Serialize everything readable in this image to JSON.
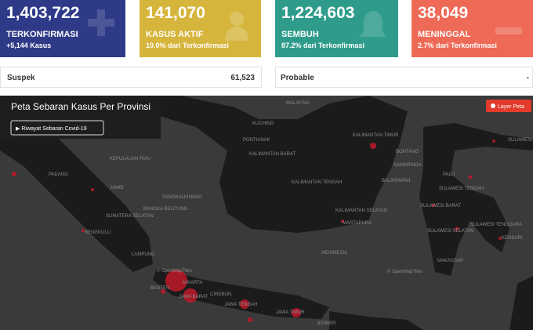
{
  "cards": [
    {
      "value": "1,403,722",
      "label": "TERKONFIRMASI",
      "sub": "+5,144 Kasus"
    },
    {
      "value": "141,070",
      "label": "KASUS AKTIF",
      "sub": "10.0% dari Terkonfirmasi"
    },
    {
      "value": "1,224,603",
      "label": "SEMBUH",
      "sub": "87.2% dari Terkonfirmasi"
    },
    {
      "value": "38,049",
      "label": "MENINGGAL",
      "sub": "2.7% dari Terkonfirmasi"
    }
  ],
  "suspek": {
    "label": "Suspek",
    "value": "61,523"
  },
  "probable": {
    "label": "Probable",
    "value": "-"
  },
  "map": {
    "title": "Peta Sebaran Kasus Per Provinsi",
    "history_button": "▶ Riwayat Sebaran Covid-19",
    "layer_button": "Layer Peta",
    "attribution": "© OpenMapTiles",
    "labels": [
      "MALAYSIA",
      "KUCHING",
      "PONTIANAK",
      "KALIMANTAN BARAT",
      "KALIMANTAN TENGAH",
      "KALIMANTAN TIMUR",
      "BONTANG",
      "SAMARINDA",
      "BALIKPAPAN",
      "KALIMANTAN SELATAN",
      "MARTAPURA",
      "INDONESIA",
      "PALU",
      "SULAWESI TENGAH",
      "SULAWESI BARAT",
      "SULAWESI SELATAN",
      "SULAWESI TENGGARA",
      "KENDARI",
      "MAKASSAR",
      "SULAWESI",
      "PADANG",
      "KEPULAUAN RIAU",
      "JAMBI",
      "PANGKALPINANG",
      "BANGKA BELITUNG",
      "SUMATERA SELATAN",
      "BENGKULU",
      "LAMPUNG",
      "JAKARTA",
      "BANTEN",
      "JAWA BARAT",
      "CIREBON",
      "JAWA TENGAH",
      "JAWA TIMUR",
      "JEMBER"
    ]
  }
}
